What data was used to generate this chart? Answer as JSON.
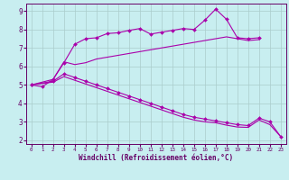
{
  "xlabel": "Windchill (Refroidissement éolien,°C)",
  "background_color": "#c8eef0",
  "line_color": "#aa00aa",
  "grid_color": "#aacccc",
  "xlim": [
    -0.5,
    23.5
  ],
  "ylim": [
    1.8,
    9.4
  ],
  "yticks": [
    2,
    3,
    4,
    5,
    6,
    7,
    8,
    9
  ],
  "xticks": [
    0,
    1,
    2,
    3,
    4,
    5,
    6,
    7,
    8,
    9,
    10,
    11,
    12,
    13,
    14,
    15,
    16,
    17,
    18,
    19,
    20,
    21,
    22,
    23
  ],
  "line1_x": [
    0,
    1,
    2,
    3,
    4,
    5,
    6,
    7,
    8,
    9,
    10,
    11,
    12,
    13,
    14,
    15,
    16,
    17,
    18,
    19,
    20,
    21
  ],
  "line1_y": [
    5.0,
    4.9,
    5.3,
    6.2,
    7.2,
    7.5,
    7.55,
    7.78,
    7.82,
    7.95,
    8.05,
    7.75,
    7.85,
    7.95,
    8.05,
    8.0,
    8.5,
    9.1,
    8.55,
    7.55,
    7.5,
    7.55
  ],
  "line2_x": [
    0,
    2,
    3,
    4,
    5,
    6,
    7,
    8,
    9,
    10,
    11,
    12,
    13,
    14,
    15,
    16,
    17,
    18,
    19,
    20,
    21
  ],
  "line2_y": [
    5.0,
    5.3,
    6.25,
    6.1,
    6.2,
    6.4,
    6.5,
    6.6,
    6.7,
    6.8,
    6.9,
    7.0,
    7.1,
    7.2,
    7.3,
    7.4,
    7.5,
    7.6,
    7.5,
    7.4,
    7.45
  ],
  "line3_x": [
    0,
    2,
    3,
    4,
    5,
    6,
    7,
    8,
    9,
    10,
    11,
    12,
    13,
    14,
    15,
    16,
    17,
    18,
    19,
    20,
    21,
    22,
    23
  ],
  "line3_y": [
    5.0,
    5.2,
    5.6,
    5.4,
    5.2,
    5.0,
    4.8,
    4.6,
    4.4,
    4.2,
    4.0,
    3.8,
    3.6,
    3.4,
    3.25,
    3.15,
    3.05,
    2.95,
    2.85,
    2.8,
    3.2,
    3.0,
    2.2
  ],
  "line4_x": [
    0,
    2,
    3,
    4,
    5,
    6,
    7,
    8,
    9,
    10,
    11,
    12,
    13,
    14,
    15,
    16,
    17,
    18,
    19,
    20,
    21,
    22,
    23
  ],
  "line4_y": [
    5.0,
    5.15,
    5.45,
    5.25,
    5.05,
    4.85,
    4.65,
    4.45,
    4.25,
    4.05,
    3.85,
    3.65,
    3.45,
    3.25,
    3.1,
    3.0,
    2.95,
    2.82,
    2.72,
    2.7,
    3.1,
    2.85,
    2.2
  ]
}
